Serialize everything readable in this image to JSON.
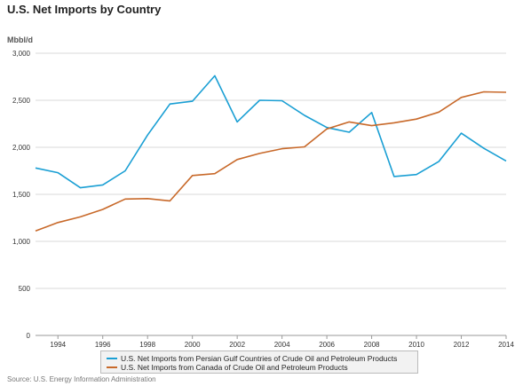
{
  "header": {
    "title": "U.S. Net Imports by Country",
    "unit": "Mbbl/d"
  },
  "chart_data": {
    "type": "line",
    "title": "U.S. Net Imports by Country",
    "ylabel": "Mbbl/d",
    "xlabel": "",
    "x": [
      1993,
      1994,
      1995,
      1996,
      1997,
      1998,
      1999,
      2000,
      2001,
      2002,
      2003,
      2004,
      2005,
      2006,
      2007,
      2008,
      2009,
      2010,
      2011,
      2012,
      2013,
      2014
    ],
    "xticks": [
      1994,
      1996,
      1998,
      2000,
      2002,
      2004,
      2006,
      2008,
      2010,
      2012,
      2014
    ],
    "xlim": [
      1993,
      2014
    ],
    "ylim": [
      0,
      3000
    ],
    "yticks": [
      0,
      500,
      1000,
      1500,
      2000,
      2500,
      3000
    ],
    "ytick_labels": [
      "0",
      "500",
      "1,000",
      "1,500",
      "2,000",
      "2,500",
      "3,000"
    ],
    "grid": true,
    "legend_position": "bottom",
    "series": [
      {
        "name": "U.S. Net Imports from Persian Gulf Countries of Crude Oil and Petroleum Products",
        "color": "#1a9fd4",
        "values": [
          1780,
          1730,
          1570,
          1600,
          1750,
          2130,
          2460,
          2490,
          2760,
          2270,
          2500,
          2495,
          2340,
          2210,
          2160,
          2370,
          1690,
          1710,
          1850,
          2150,
          1990,
          1855
        ]
      },
      {
        "name": "U.S. Net Imports from Canada of Crude Oil and Petroleum Products",
        "color": "#c8692a",
        "values": [
          1110,
          1200,
          1260,
          1340,
          1450,
          1455,
          1430,
          1700,
          1720,
          1870,
          1935,
          1985,
          2005,
          2195,
          2270,
          2230,
          2260,
          2300,
          2375,
          2530,
          2590,
          2585
        ]
      }
    ]
  },
  "source": "Source: U.S. Energy Information Administration"
}
